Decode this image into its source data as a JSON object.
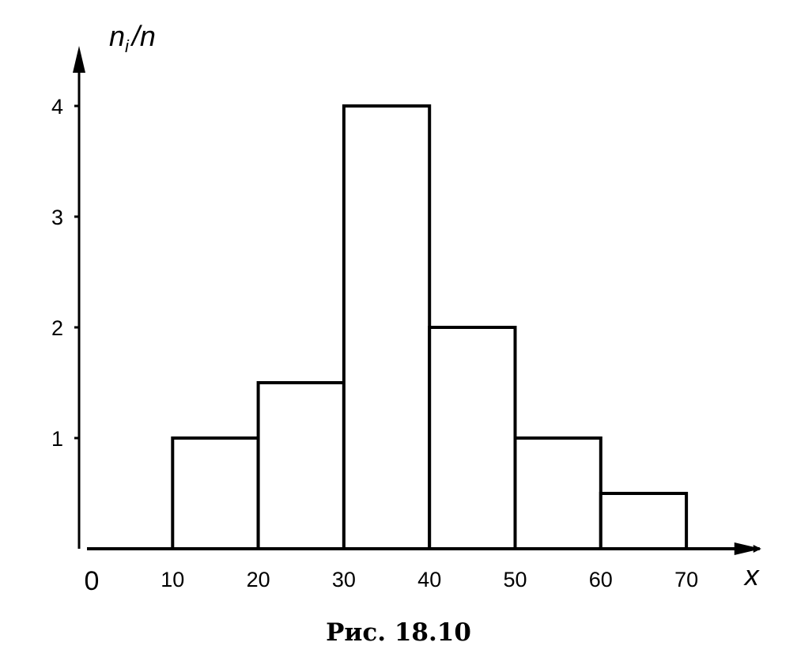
{
  "chart_data": {
    "type": "bar",
    "subtype": "histogram",
    "bins": [
      {
        "from": 10,
        "to": 20,
        "value": 1
      },
      {
        "from": 20,
        "to": 30,
        "value": 1.5
      },
      {
        "from": 30,
        "to": 40,
        "value": 4
      },
      {
        "from": 40,
        "to": 50,
        "value": 2
      },
      {
        "from": 50,
        "to": 60,
        "value": 1
      },
      {
        "from": 60,
        "to": 70,
        "value": 0.5
      }
    ],
    "x_ticks": [
      10,
      20,
      30,
      40,
      50,
      60,
      70
    ],
    "y_ticks": [
      1,
      2,
      3,
      4
    ],
    "origin_label": "0",
    "xlabel": "x",
    "ylabel": {
      "base": "n",
      "sub": "i",
      "rest": "/n"
    },
    "xlim": [
      0,
      78
    ],
    "ylim": [
      0,
      4.4
    ],
    "grid": false,
    "colors": {
      "stroke": "#000000",
      "fill": "#ffffff"
    },
    "caption": "Рис. 18.10"
  }
}
